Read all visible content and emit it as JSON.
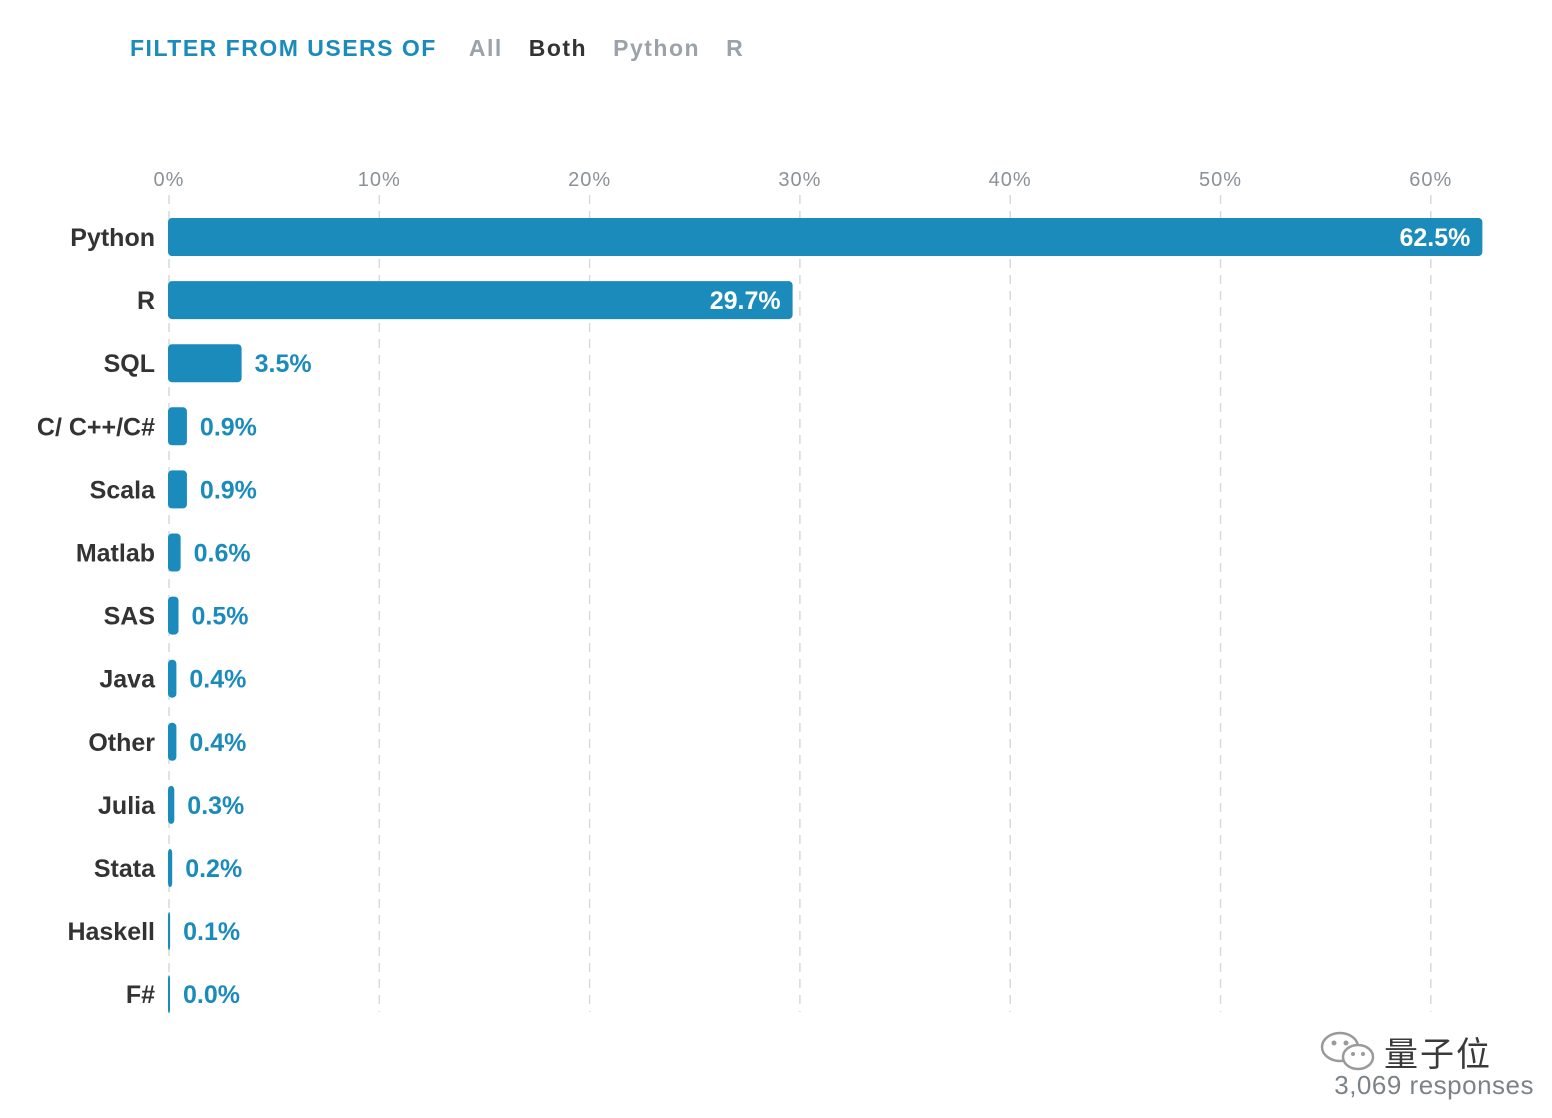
{
  "filter": {
    "label": "FILTER FROM USERS OF",
    "options": [
      "All",
      "Both",
      "Python",
      "R"
    ],
    "selected": "Both"
  },
  "colors": {
    "bar": "#1a8bbb",
    "active_filter": "#333333",
    "inactive_filter": "#9aa3aa",
    "grid": "#d9d9d9"
  },
  "chart_data": {
    "type": "bar",
    "orientation": "horizontal",
    "xlim": [
      0,
      62.5
    ],
    "ticks": [
      0,
      10,
      20,
      30,
      40,
      50,
      60
    ],
    "tick_labels": [
      "0%",
      "10%",
      "20%",
      "30%",
      "40%",
      "50%",
      "60%"
    ],
    "grid": true,
    "categories": [
      "Python",
      "R",
      "SQL",
      "C/ C++/C#",
      "Scala",
      "Matlab",
      "SAS",
      "Java",
      "Other",
      "Julia",
      "Stata",
      "Haskell",
      "F#"
    ],
    "values": [
      62.5,
      29.7,
      3.5,
      0.9,
      0.9,
      0.6,
      0.5,
      0.4,
      0.4,
      0.3,
      0.2,
      0.1,
      0.0
    ],
    "value_labels": [
      "62.5%",
      "29.7%",
      "3.5%",
      "0.9%",
      "0.9%",
      "0.6%",
      "0.5%",
      "0.4%",
      "0.4%",
      "0.3%",
      "0.2%",
      "0.1%",
      "0.0%"
    ]
  },
  "watermark": "量子位",
  "footer": "3,069 responses"
}
